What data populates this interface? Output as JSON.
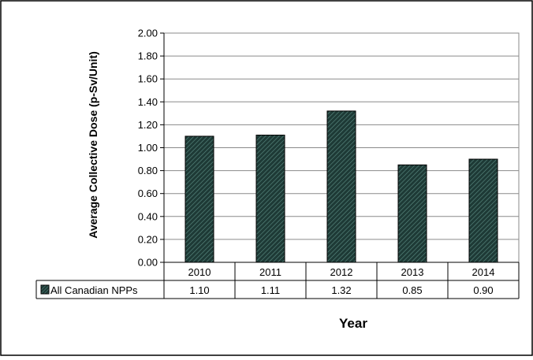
{
  "chart_data": {
    "type": "bar",
    "categories": [
      "2010",
      "2011",
      "2012",
      "2013",
      "2014"
    ],
    "series": [
      {
        "name": "All Canadian NPPs",
        "values": [
          1.1,
          1.11,
          1.32,
          0.85,
          0.9
        ]
      }
    ],
    "table_values": [
      "1.10",
      "1.11",
      "1.32",
      "0.85",
      "0.90"
    ],
    "yticks": [
      "0.00",
      "0.20",
      "0.40",
      "0.60",
      "0.80",
      "1.00",
      "1.20",
      "1.40",
      "1.60",
      "1.80",
      "2.00"
    ],
    "ylim": [
      0,
      2.0
    ],
    "xlabel": "Year",
    "ylabel": "Average Collective Dose (p-Sv/Unit)",
    "grid": true,
    "legend": "data-table",
    "bar_color": "#1e3a36",
    "hatch_color": "#5e8f86"
  }
}
